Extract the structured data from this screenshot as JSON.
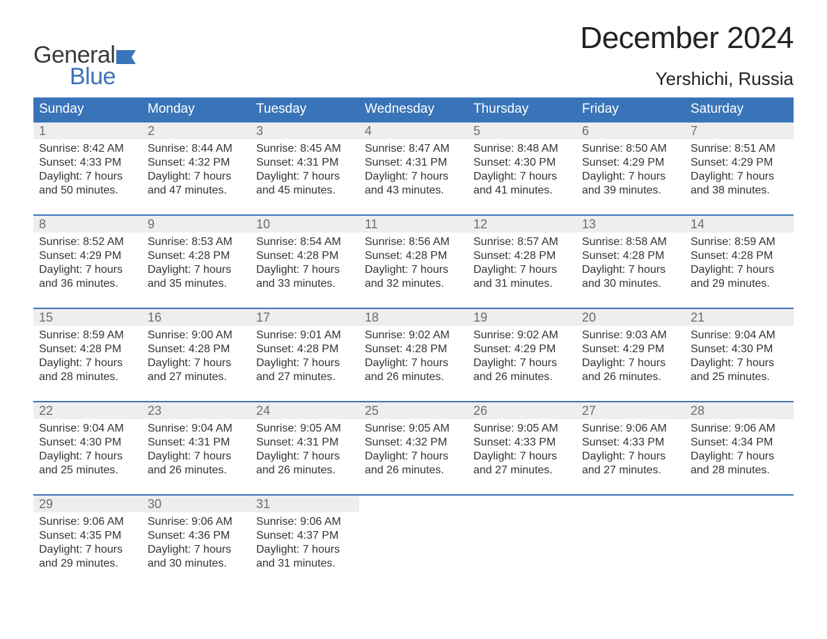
{
  "brand": {
    "word1": "General",
    "word2": "Blue",
    "word1_color": "#3a3a3a",
    "word2_color": "#3a74b8",
    "flag_color": "#3a74b8"
  },
  "header": {
    "month_title": "December 2024",
    "location": "Yershichi, Russia"
  },
  "styling": {
    "page_bg": "#ffffff",
    "header_bg": "#3a74b8",
    "header_text_color": "#ffffff",
    "day_band_bg": "#eeeeee",
    "day_num_color": "#6d6d6d",
    "body_text_color": "#333333",
    "row_border_color": "#3a74b8",
    "weekday_fontsize": 19,
    "daynum_fontsize": 18,
    "body_fontsize": 16,
    "title_fontsize": 44,
    "location_fontsize": 26
  },
  "weekdays": [
    "Sunday",
    "Monday",
    "Tuesday",
    "Wednesday",
    "Thursday",
    "Friday",
    "Saturday"
  ],
  "weeks": [
    [
      {
        "n": "1",
        "sr": "Sunrise: 8:42 AM",
        "ss": "Sunset: 4:33 PM",
        "d1": "Daylight: 7 hours",
        "d2": "and 50 minutes."
      },
      {
        "n": "2",
        "sr": "Sunrise: 8:44 AM",
        "ss": "Sunset: 4:32 PM",
        "d1": "Daylight: 7 hours",
        "d2": "and 47 minutes."
      },
      {
        "n": "3",
        "sr": "Sunrise: 8:45 AM",
        "ss": "Sunset: 4:31 PM",
        "d1": "Daylight: 7 hours",
        "d2": "and 45 minutes."
      },
      {
        "n": "4",
        "sr": "Sunrise: 8:47 AM",
        "ss": "Sunset: 4:31 PM",
        "d1": "Daylight: 7 hours",
        "d2": "and 43 minutes."
      },
      {
        "n": "5",
        "sr": "Sunrise: 8:48 AM",
        "ss": "Sunset: 4:30 PM",
        "d1": "Daylight: 7 hours",
        "d2": "and 41 minutes."
      },
      {
        "n": "6",
        "sr": "Sunrise: 8:50 AM",
        "ss": "Sunset: 4:29 PM",
        "d1": "Daylight: 7 hours",
        "d2": "and 39 minutes."
      },
      {
        "n": "7",
        "sr": "Sunrise: 8:51 AM",
        "ss": "Sunset: 4:29 PM",
        "d1": "Daylight: 7 hours",
        "d2": "and 38 minutes."
      }
    ],
    [
      {
        "n": "8",
        "sr": "Sunrise: 8:52 AM",
        "ss": "Sunset: 4:29 PM",
        "d1": "Daylight: 7 hours",
        "d2": "and 36 minutes."
      },
      {
        "n": "9",
        "sr": "Sunrise: 8:53 AM",
        "ss": "Sunset: 4:28 PM",
        "d1": "Daylight: 7 hours",
        "d2": "and 35 minutes."
      },
      {
        "n": "10",
        "sr": "Sunrise: 8:54 AM",
        "ss": "Sunset: 4:28 PM",
        "d1": "Daylight: 7 hours",
        "d2": "and 33 minutes."
      },
      {
        "n": "11",
        "sr": "Sunrise: 8:56 AM",
        "ss": "Sunset: 4:28 PM",
        "d1": "Daylight: 7 hours",
        "d2": "and 32 minutes."
      },
      {
        "n": "12",
        "sr": "Sunrise: 8:57 AM",
        "ss": "Sunset: 4:28 PM",
        "d1": "Daylight: 7 hours",
        "d2": "and 31 minutes."
      },
      {
        "n": "13",
        "sr": "Sunrise: 8:58 AM",
        "ss": "Sunset: 4:28 PM",
        "d1": "Daylight: 7 hours",
        "d2": "and 30 minutes."
      },
      {
        "n": "14",
        "sr": "Sunrise: 8:59 AM",
        "ss": "Sunset: 4:28 PM",
        "d1": "Daylight: 7 hours",
        "d2": "and 29 minutes."
      }
    ],
    [
      {
        "n": "15",
        "sr": "Sunrise: 8:59 AM",
        "ss": "Sunset: 4:28 PM",
        "d1": "Daylight: 7 hours",
        "d2": "and 28 minutes."
      },
      {
        "n": "16",
        "sr": "Sunrise: 9:00 AM",
        "ss": "Sunset: 4:28 PM",
        "d1": "Daylight: 7 hours",
        "d2": "and 27 minutes."
      },
      {
        "n": "17",
        "sr": "Sunrise: 9:01 AM",
        "ss": "Sunset: 4:28 PM",
        "d1": "Daylight: 7 hours",
        "d2": "and 27 minutes."
      },
      {
        "n": "18",
        "sr": "Sunrise: 9:02 AM",
        "ss": "Sunset: 4:28 PM",
        "d1": "Daylight: 7 hours",
        "d2": "and 26 minutes."
      },
      {
        "n": "19",
        "sr": "Sunrise: 9:02 AM",
        "ss": "Sunset: 4:29 PM",
        "d1": "Daylight: 7 hours",
        "d2": "and 26 minutes."
      },
      {
        "n": "20",
        "sr": "Sunrise: 9:03 AM",
        "ss": "Sunset: 4:29 PM",
        "d1": "Daylight: 7 hours",
        "d2": "and 26 minutes."
      },
      {
        "n": "21",
        "sr": "Sunrise: 9:04 AM",
        "ss": "Sunset: 4:30 PM",
        "d1": "Daylight: 7 hours",
        "d2": "and 25 minutes."
      }
    ],
    [
      {
        "n": "22",
        "sr": "Sunrise: 9:04 AM",
        "ss": "Sunset: 4:30 PM",
        "d1": "Daylight: 7 hours",
        "d2": "and 25 minutes."
      },
      {
        "n": "23",
        "sr": "Sunrise: 9:04 AM",
        "ss": "Sunset: 4:31 PM",
        "d1": "Daylight: 7 hours",
        "d2": "and 26 minutes."
      },
      {
        "n": "24",
        "sr": "Sunrise: 9:05 AM",
        "ss": "Sunset: 4:31 PM",
        "d1": "Daylight: 7 hours",
        "d2": "and 26 minutes."
      },
      {
        "n": "25",
        "sr": "Sunrise: 9:05 AM",
        "ss": "Sunset: 4:32 PM",
        "d1": "Daylight: 7 hours",
        "d2": "and 26 minutes."
      },
      {
        "n": "26",
        "sr": "Sunrise: 9:05 AM",
        "ss": "Sunset: 4:33 PM",
        "d1": "Daylight: 7 hours",
        "d2": "and 27 minutes."
      },
      {
        "n": "27",
        "sr": "Sunrise: 9:06 AM",
        "ss": "Sunset: 4:33 PM",
        "d1": "Daylight: 7 hours",
        "d2": "and 27 minutes."
      },
      {
        "n": "28",
        "sr": "Sunrise: 9:06 AM",
        "ss": "Sunset: 4:34 PM",
        "d1": "Daylight: 7 hours",
        "d2": "and 28 minutes."
      }
    ],
    [
      {
        "n": "29",
        "sr": "Sunrise: 9:06 AM",
        "ss": "Sunset: 4:35 PM",
        "d1": "Daylight: 7 hours",
        "d2": "and 29 minutes."
      },
      {
        "n": "30",
        "sr": "Sunrise: 9:06 AM",
        "ss": "Sunset: 4:36 PM",
        "d1": "Daylight: 7 hours",
        "d2": "and 30 minutes."
      },
      {
        "n": "31",
        "sr": "Sunrise: 9:06 AM",
        "ss": "Sunset: 4:37 PM",
        "d1": "Daylight: 7 hours",
        "d2": "and 31 minutes."
      },
      null,
      null,
      null,
      null
    ]
  ]
}
